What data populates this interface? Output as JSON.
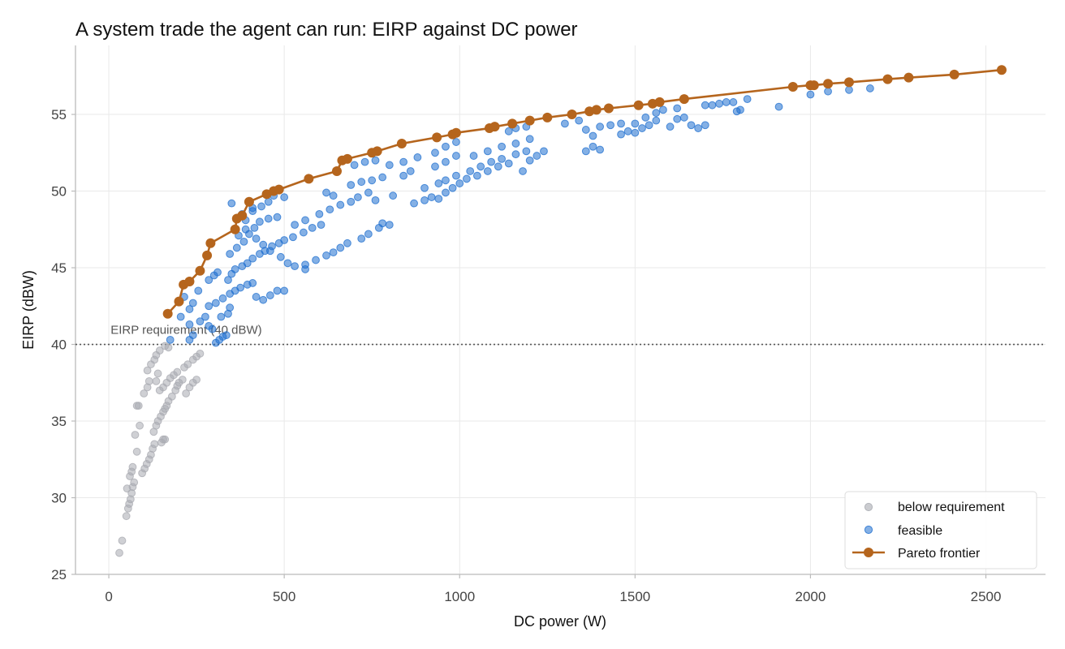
{
  "chart_data": {
    "type": "scatter",
    "title": "A system trade the agent can run: EIRP against DC power",
    "xlabel": "DC power (W)",
    "ylabel": "EIRP (dBW)",
    "xlim": [
      -95,
      2670
    ],
    "ylim": [
      25,
      59.5
    ],
    "xticks": [
      0,
      500,
      1000,
      1500,
      2000,
      2500
    ],
    "yticks": [
      25,
      30,
      35,
      40,
      45,
      50,
      55
    ],
    "grid": true,
    "legend_position": "lower right",
    "reference_line": {
      "y": 40,
      "label": "EIRP requirement (40 dBW)"
    },
    "series": [
      {
        "name": "below requirement",
        "kind": "scatter",
        "color": "#a8aab0",
        "points": [
          [
            30,
            26.4
          ],
          [
            38,
            27.2
          ],
          [
            50,
            28.8
          ],
          [
            55,
            29.3
          ],
          [
            58,
            29.6
          ],
          [
            62,
            29.9
          ],
          [
            65,
            30.3
          ],
          [
            52,
            30.6
          ],
          [
            68,
            30.7
          ],
          [
            72,
            31.0
          ],
          [
            60,
            31.4
          ],
          [
            65,
            31.7
          ],
          [
            68,
            32.0
          ],
          [
            95,
            31.6
          ],
          [
            102,
            31.9
          ],
          [
            108,
            32.2
          ],
          [
            115,
            32.5
          ],
          [
            120,
            32.8
          ],
          [
            80,
            33.0
          ],
          [
            125,
            33.2
          ],
          [
            130,
            33.5
          ],
          [
            150,
            33.6
          ],
          [
            155,
            33.8
          ],
          [
            160,
            33.8
          ],
          [
            75,
            34.1
          ],
          [
            88,
            34.7
          ],
          [
            128,
            34.3
          ],
          [
            135,
            34.7
          ],
          [
            140,
            35.0
          ],
          [
            148,
            35.3
          ],
          [
            155,
            35.6
          ],
          [
            160,
            35.8
          ],
          [
            165,
            36.0
          ],
          [
            170,
            36.3
          ],
          [
            80,
            36.0
          ],
          [
            85,
            36.0
          ],
          [
            180,
            36.6
          ],
          [
            190,
            37.0
          ],
          [
            195,
            37.3
          ],
          [
            200,
            37.5
          ],
          [
            210,
            37.7
          ],
          [
            220,
            36.8
          ],
          [
            230,
            37.2
          ],
          [
            240,
            37.5
          ],
          [
            250,
            37.7
          ],
          [
            100,
            36.8
          ],
          [
            110,
            37.2
          ],
          [
            115,
            37.6
          ],
          [
            135,
            37.6
          ],
          [
            145,
            37.0
          ],
          [
            155,
            37.2
          ],
          [
            165,
            37.5
          ],
          [
            175,
            37.8
          ],
          [
            185,
            38.0
          ],
          [
            195,
            38.2
          ],
          [
            215,
            38.5
          ],
          [
            225,
            38.7
          ],
          [
            240,
            39.0
          ],
          [
            250,
            39.2
          ],
          [
            260,
            39.4
          ],
          [
            110,
            38.3
          ],
          [
            120,
            38.7
          ],
          [
            130,
            39.0
          ],
          [
            135,
            39.3
          ],
          [
            145,
            39.6
          ],
          [
            160,
            39.9
          ],
          [
            170,
            39.8
          ],
          [
            140,
            38.1
          ]
        ]
      },
      {
        "name": "feasible",
        "kind": "scatter",
        "color": "#1f6fcf",
        "points": [
          [
            175,
            40.3
          ],
          [
            230,
            40.3
          ],
          [
            240,
            40.6
          ],
          [
            305,
            40.1
          ],
          [
            315,
            40.3
          ],
          [
            325,
            40.5
          ],
          [
            335,
            40.6
          ],
          [
            285,
            41.2
          ],
          [
            295,
            41.0
          ],
          [
            230,
            41.3
          ],
          [
            260,
            41.5
          ],
          [
            275,
            41.8
          ],
          [
            320,
            41.8
          ],
          [
            340,
            42.0
          ],
          [
            345,
            42.4
          ],
          [
            205,
            41.8
          ],
          [
            230,
            42.3
          ],
          [
            215,
            43.1
          ],
          [
            240,
            42.7
          ],
          [
            255,
            43.5
          ],
          [
            285,
            42.5
          ],
          [
            305,
            42.7
          ],
          [
            325,
            43.0
          ],
          [
            345,
            43.3
          ],
          [
            360,
            43.5
          ],
          [
            375,
            43.7
          ],
          [
            395,
            43.9
          ],
          [
            410,
            44.0
          ],
          [
            285,
            44.2
          ],
          [
            300,
            44.5
          ],
          [
            310,
            44.7
          ],
          [
            340,
            44.2
          ],
          [
            350,
            44.6
          ],
          [
            360,
            44.9
          ],
          [
            380,
            45.1
          ],
          [
            395,
            45.3
          ],
          [
            410,
            45.6
          ],
          [
            430,
            45.9
          ],
          [
            445,
            46.1
          ],
          [
            465,
            46.4
          ],
          [
            485,
            46.6
          ],
          [
            500,
            46.8
          ],
          [
            525,
            47.0
          ],
          [
            555,
            47.3
          ],
          [
            580,
            47.6
          ],
          [
            605,
            47.8
          ],
          [
            345,
            45.9
          ],
          [
            365,
            46.3
          ],
          [
            385,
            46.7
          ],
          [
            400,
            47.2
          ],
          [
            415,
            47.6
          ],
          [
            430,
            48.0
          ],
          [
            455,
            48.2
          ],
          [
            480,
            48.3
          ],
          [
            370,
            47.1
          ],
          [
            390,
            47.5
          ],
          [
            420,
            46.9
          ],
          [
            440,
            46.5
          ],
          [
            460,
            46.1
          ],
          [
            490,
            45.7
          ],
          [
            510,
            45.3
          ],
          [
            530,
            45.1
          ],
          [
            560,
            44.9
          ],
          [
            390,
            48.1
          ],
          [
            410,
            48.7
          ],
          [
            435,
            49.0
          ],
          [
            455,
            49.3
          ],
          [
            470,
            49.7
          ],
          [
            500,
            49.6
          ],
          [
            420,
            43.1
          ],
          [
            440,
            42.9
          ],
          [
            460,
            43.2
          ],
          [
            480,
            43.5
          ],
          [
            500,
            43.5
          ],
          [
            350,
            49.2
          ],
          [
            380,
            48.5
          ],
          [
            410,
            48.9
          ],
          [
            560,
            45.2
          ],
          [
            590,
            45.5
          ],
          [
            620,
            45.8
          ],
          [
            640,
            46.0
          ],
          [
            660,
            46.3
          ],
          [
            680,
            46.6
          ],
          [
            720,
            46.9
          ],
          [
            740,
            47.2
          ],
          [
            770,
            47.6
          ],
          [
            780,
            47.9
          ],
          [
            800,
            47.8
          ],
          [
            530,
            47.8
          ],
          [
            560,
            48.1
          ],
          [
            600,
            48.5
          ],
          [
            630,
            48.8
          ],
          [
            660,
            49.1
          ],
          [
            690,
            49.3
          ],
          [
            710,
            49.6
          ],
          [
            740,
            49.9
          ],
          [
            760,
            49.4
          ],
          [
            810,
            49.7
          ],
          [
            620,
            49.9
          ],
          [
            640,
            49.7
          ],
          [
            690,
            50.4
          ],
          [
            720,
            50.6
          ],
          [
            750,
            50.7
          ],
          [
            780,
            50.9
          ],
          [
            840,
            51.0
          ],
          [
            860,
            51.3
          ],
          [
            870,
            49.2
          ],
          [
            900,
            49.4
          ],
          [
            920,
            49.6
          ],
          [
            940,
            49.5
          ],
          [
            960,
            49.9
          ],
          [
            980,
            50.2
          ],
          [
            1000,
            50.5
          ],
          [
            1020,
            50.8
          ],
          [
            1050,
            51.0
          ],
          [
            1080,
            51.3
          ],
          [
            1110,
            51.6
          ],
          [
            1140,
            51.8
          ],
          [
            1180,
            51.3
          ],
          [
            1200,
            52.0
          ],
          [
            1220,
            52.3
          ],
          [
            1240,
            52.6
          ],
          [
            900,
            50.2
          ],
          [
            940,
            50.5
          ],
          [
            960,
            50.7
          ],
          [
            990,
            51.0
          ],
          [
            1030,
            51.3
          ],
          [
            1060,
            51.6
          ],
          [
            1090,
            51.9
          ],
          [
            1120,
            52.1
          ],
          [
            1160,
            52.4
          ],
          [
            1190,
            52.6
          ],
          [
            930,
            51.6
          ],
          [
            960,
            51.9
          ],
          [
            990,
            52.3
          ],
          [
            1040,
            52.3
          ],
          [
            1080,
            52.6
          ],
          [
            1120,
            52.9
          ],
          [
            1160,
            53.1
          ],
          [
            1200,
            53.4
          ],
          [
            700,
            51.7
          ],
          [
            730,
            51.9
          ],
          [
            760,
            52.0
          ],
          [
            800,
            51.7
          ],
          [
            840,
            51.9
          ],
          [
            880,
            52.2
          ],
          [
            930,
            52.5
          ],
          [
            960,
            52.9
          ],
          [
            990,
            53.2
          ],
          [
            1140,
            53.9
          ],
          [
            1160,
            54.1
          ],
          [
            1190,
            54.2
          ],
          [
            1300,
            54.4
          ],
          [
            1340,
            54.6
          ],
          [
            1360,
            54.0
          ],
          [
            1380,
            53.6
          ],
          [
            1400,
            54.2
          ],
          [
            1430,
            54.3
          ],
          [
            1460,
            54.4
          ],
          [
            1480,
            53.9
          ],
          [
            1500,
            53.8
          ],
          [
            1520,
            54.1
          ],
          [
            1540,
            54.3
          ],
          [
            1560,
            54.6
          ],
          [
            1380,
            52.9
          ],
          [
            1400,
            52.7
          ],
          [
            1360,
            52.6
          ],
          [
            1460,
            53.7
          ],
          [
            1500,
            54.4
          ],
          [
            1530,
            54.8
          ],
          [
            1560,
            55.1
          ],
          [
            1580,
            55.3
          ],
          [
            1620,
            55.4
          ],
          [
            1640,
            54.8
          ],
          [
            1660,
            54.3
          ],
          [
            1680,
            54.1
          ],
          [
            1700,
            54.3
          ],
          [
            1720,
            55.6
          ],
          [
            1760,
            55.8
          ],
          [
            1790,
            55.2
          ],
          [
            1820,
            56.0
          ],
          [
            1910,
            55.5
          ],
          [
            2000,
            56.3
          ],
          [
            2050,
            56.5
          ],
          [
            2110,
            56.6
          ],
          [
            2170,
            56.7
          ],
          [
            1700,
            55.6
          ],
          [
            1740,
            55.7
          ],
          [
            1780,
            55.8
          ],
          [
            1800,
            55.3
          ],
          [
            1620,
            54.7
          ],
          [
            1600,
            54.2
          ]
        ]
      },
      {
        "name": "Pareto frontier",
        "kind": "line",
        "color": "#b5651d",
        "points": [
          [
            168,
            42.0
          ],
          [
            200,
            42.8
          ],
          [
            213,
            43.9
          ],
          [
            230,
            44.1
          ],
          [
            260,
            44.8
          ],
          [
            280,
            45.8
          ],
          [
            290,
            46.6
          ],
          [
            360,
            47.5
          ],
          [
            365,
            48.2
          ],
          [
            380,
            48.4
          ],
          [
            400,
            49.3
          ],
          [
            450,
            49.8
          ],
          [
            470,
            50.0
          ],
          [
            485,
            50.1
          ],
          [
            570,
            50.8
          ],
          [
            650,
            51.3
          ],
          [
            665,
            52.0
          ],
          [
            680,
            52.1
          ],
          [
            750,
            52.5
          ],
          [
            765,
            52.6
          ],
          [
            835,
            53.1
          ],
          [
            935,
            53.5
          ],
          [
            980,
            53.7
          ],
          [
            990,
            53.8
          ],
          [
            1085,
            54.1
          ],
          [
            1100,
            54.2
          ],
          [
            1150,
            54.4
          ],
          [
            1200,
            54.6
          ],
          [
            1250,
            54.8
          ],
          [
            1320,
            55.0
          ],
          [
            1370,
            55.2
          ],
          [
            1390,
            55.3
          ],
          [
            1425,
            55.4
          ],
          [
            1510,
            55.6
          ],
          [
            1550,
            55.7
          ],
          [
            1570,
            55.8
          ],
          [
            1640,
            56.0
          ],
          [
            1950,
            56.8
          ],
          [
            2000,
            56.9
          ],
          [
            2010,
            56.9
          ],
          [
            2050,
            57.0
          ],
          [
            2110,
            57.1
          ],
          [
            2220,
            57.3
          ],
          [
            2280,
            57.4
          ],
          [
            2410,
            57.6
          ],
          [
            2545,
            57.9
          ]
        ]
      }
    ]
  }
}
